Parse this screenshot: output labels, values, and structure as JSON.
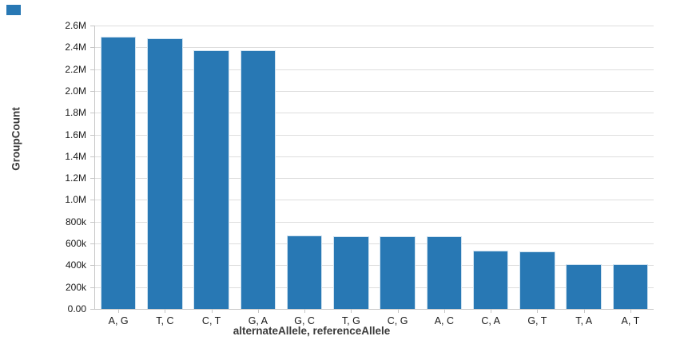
{
  "chart_data": {
    "type": "bar",
    "title": "",
    "xlabel": "alternateAllele, referenceAllele",
    "ylabel": "GroupCount",
    "categories": [
      "A, G",
      "T, C",
      "C, T",
      "G, A",
      "G, C",
      "T, G",
      "C, G",
      "A, C",
      "C, A",
      "G, T",
      "T, A",
      "A, T"
    ],
    "values": [
      2500000,
      2480000,
      2370000,
      2370000,
      676000,
      670000,
      670000,
      663000,
      532000,
      528000,
      411000,
      410000
    ],
    "ylim": [
      0,
      2600000
    ],
    "ytick_step": 200000,
    "ytick_labels": [
      "0.00",
      "200k",
      "400k",
      "600k",
      "800k",
      "1.0M",
      "1.2M",
      "1.4M",
      "1.6M",
      "1.8M",
      "2.0M",
      "2.2M",
      "2.4M",
      "2.6M"
    ],
    "grid": true,
    "legend": false
  },
  "colors": {
    "bar_fill": "#2878b4",
    "bar_edge": "#cfe2f0",
    "gridline": "#dedede",
    "axis_line": "#c6c6c6",
    "tick_text": "#1a1a1a",
    "title_text": "#3a3a3a",
    "corner_marker": "#2878b4"
  }
}
